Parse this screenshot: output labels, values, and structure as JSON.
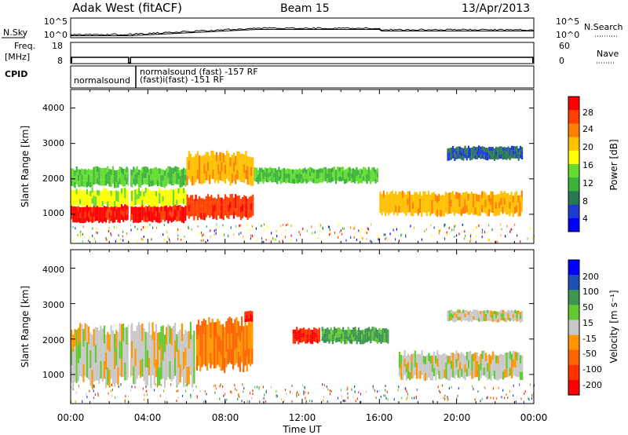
{
  "header": {
    "station": "Adak West (fitACF)",
    "beam": "Beam 15",
    "date": "13/Apr/2013"
  },
  "panels": {
    "nsky": {
      "label": "N.Sky",
      "left_ticks": [
        "10^5",
        "10^0"
      ],
      "right_ticks": [
        "10^5",
        "10^0"
      ],
      "right_label": "N.Search"
    },
    "freq": {
      "label_line1": "Freq.",
      "label_line2": "[MHz]",
      "left_ticks": [
        "18",
        "8"
      ],
      "right_ticks": [
        "60",
        "0"
      ],
      "right_label": "Nave"
    },
    "cpid": {
      "label": "CPID",
      "segments": [
        "normalsound",
        "normalsound (fast) -157 RF",
        "(fast)i(fast) -151 RF"
      ]
    },
    "power": {
      "ylabel": "Slant Range [km]",
      "yticks": [
        "1000",
        "2000",
        "3000",
        "4000"
      ],
      "colorbar_label": "Power [dB]",
      "colorbar_ticks": [
        "4",
        "8",
        "12",
        "16",
        "20",
        "24",
        "28"
      ],
      "colorbar_colors": [
        "#0000ff",
        "#1e3cd2",
        "#287850",
        "#3cb43c",
        "#64dc32",
        "#ffff00",
        "#ffc000",
        "#ff8000",
        "#ff4000",
        "#ff0000"
      ]
    },
    "velocity": {
      "ylabel": "Slant Range [km]",
      "yticks": [
        "1000",
        "2000",
        "3000",
        "4000"
      ],
      "colorbar_label": "Velocity [m s⁻¹]",
      "colorbar_ticks": [
        "200",
        "100",
        "50",
        "15",
        "-15",
        "-50",
        "-100",
        "-200"
      ],
      "colorbar_colors": [
        "#0000ff",
        "#1e50b4",
        "#3c9650",
        "#64c832",
        "#c8c8c8",
        "#ff9600",
        "#ff6400",
        "#ff3200",
        "#ff0000"
      ]
    }
  },
  "xaxis": {
    "label": "Time UT",
    "ticks": [
      "00:00",
      "04:00",
      "08:00",
      "12:00",
      "16:00",
      "20:00",
      "00:00"
    ]
  },
  "chart_data": [
    {
      "type": "heatmap",
      "title": "Power",
      "xlabel": "Time UT",
      "ylabel": "Slant Range [km]",
      "xlim": [
        0,
        24
      ],
      "ylim": [
        200,
        4500
      ],
      "zlim": [
        0,
        30
      ],
      "zlabel": "Power [dB]",
      "regions": [
        {
          "t0": 0.0,
          "t1": 6.0,
          "r0": 800,
          "r1": 1250,
          "value": 28
        },
        {
          "t0": 0.0,
          "t1": 6.0,
          "r0": 1250,
          "r1": 1700,
          "value": 16
        },
        {
          "t0": 0.0,
          "t1": 6.0,
          "r0": 1800,
          "r1": 2300,
          "value": 12
        },
        {
          "t0": 6.0,
          "t1": 9.5,
          "r0": 900,
          "r1": 1500,
          "value": 26
        },
        {
          "t0": 6.0,
          "t1": 9.5,
          "r0": 1900,
          "r1": 2700,
          "value": 20
        },
        {
          "t0": 9.5,
          "t1": 16.0,
          "r0": 1900,
          "r1": 2300,
          "value": 12
        },
        {
          "t0": 16.0,
          "t1": 23.5,
          "r0": 1000,
          "r1": 1600,
          "value": 20
        },
        {
          "t0": 19.5,
          "t1": 23.5,
          "r0": 2550,
          "r1": 2900,
          "value": 6
        }
      ]
    },
    {
      "type": "heatmap",
      "title": "Velocity",
      "xlabel": "Time UT",
      "ylabel": "Slant Range [km]",
      "xlim": [
        0,
        24
      ],
      "ylim": [
        200,
        4500
      ],
      "zlim": [
        -200,
        200
      ],
      "zlabel": "Velocity [m s⁻¹]",
      "regions": [
        {
          "t0": 0.0,
          "t1": 6.5,
          "r0": 800,
          "r1": 2300,
          "value": 0
        },
        {
          "t0": 6.5,
          "t1": 9.5,
          "r0": 1200,
          "r1": 2500,
          "value": -50
        },
        {
          "t0": 9.0,
          "t1": 9.5,
          "r0": 2500,
          "r1": 2800,
          "value": -200
        },
        {
          "t0": 11.5,
          "t1": 13.0,
          "r0": 1900,
          "r1": 2300,
          "value": -200
        },
        {
          "t0": 13.0,
          "t1": 16.5,
          "r0": 1900,
          "r1": 2300,
          "value": 60
        },
        {
          "t0": 17.0,
          "t1": 23.5,
          "r0": 900,
          "r1": 1600,
          "value": 0
        },
        {
          "t0": 19.5,
          "t1": 23.5,
          "r0": 2500,
          "r1": 2800,
          "value": 0
        }
      ]
    }
  ]
}
